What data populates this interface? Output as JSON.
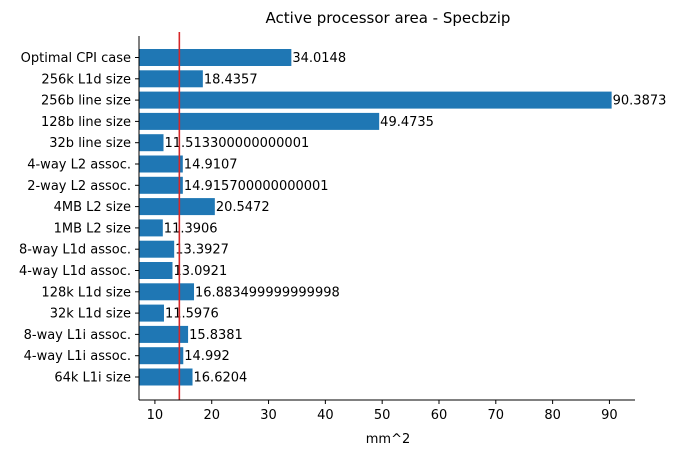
{
  "chart_data": {
    "type": "bar",
    "orientation": "horizontal",
    "title": "Active processor area - Specbzip",
    "xlabel": "mm^2",
    "ylabel": "",
    "xlim": [
      7.2,
      94.5
    ],
    "xticks": [
      10,
      20,
      30,
      40,
      50,
      60,
      70,
      80,
      90
    ],
    "grid": false,
    "categories": [
      "Optimal CPI case",
      "256k L1d size",
      "256b line size",
      "128b line size",
      "32b line size",
      "4-way L2 assoc.",
      "2-way L2 assoc.",
      "4MB L2 size",
      "1MB L2 size",
      "8-way L1d assoc.",
      "4-way L1d assoc.",
      "128k L1d size",
      "32k L1d size",
      "8-way L1i assoc.",
      "4-way L1i assoc.",
      "64k L1i size"
    ],
    "values": [
      34.0148,
      18.4357,
      90.3873,
      49.4735,
      11.5133,
      14.9107,
      14.9157,
      20.5472,
      11.3906,
      13.3927,
      13.0921,
      16.8835,
      11.5976,
      15.8381,
      14.992,
      16.6204
    ],
    "value_labels": [
      "34.0148",
      "18.4357",
      "90.3873",
      "49.4735",
      "11.513300000000001",
      "14.9107",
      "14.915700000000001",
      "20.5472",
      "11.3906",
      "13.3927",
      "13.0921",
      "16.883499999999998",
      "11.5976",
      "15.8381",
      "14.992",
      "16.6204"
    ],
    "reference_line": {
      "x": 14.3,
      "orientation": "vertical"
    },
    "colors": {
      "bar": "#1f77b4",
      "reference_line": "#d62728",
      "axis": "#000000"
    }
  }
}
